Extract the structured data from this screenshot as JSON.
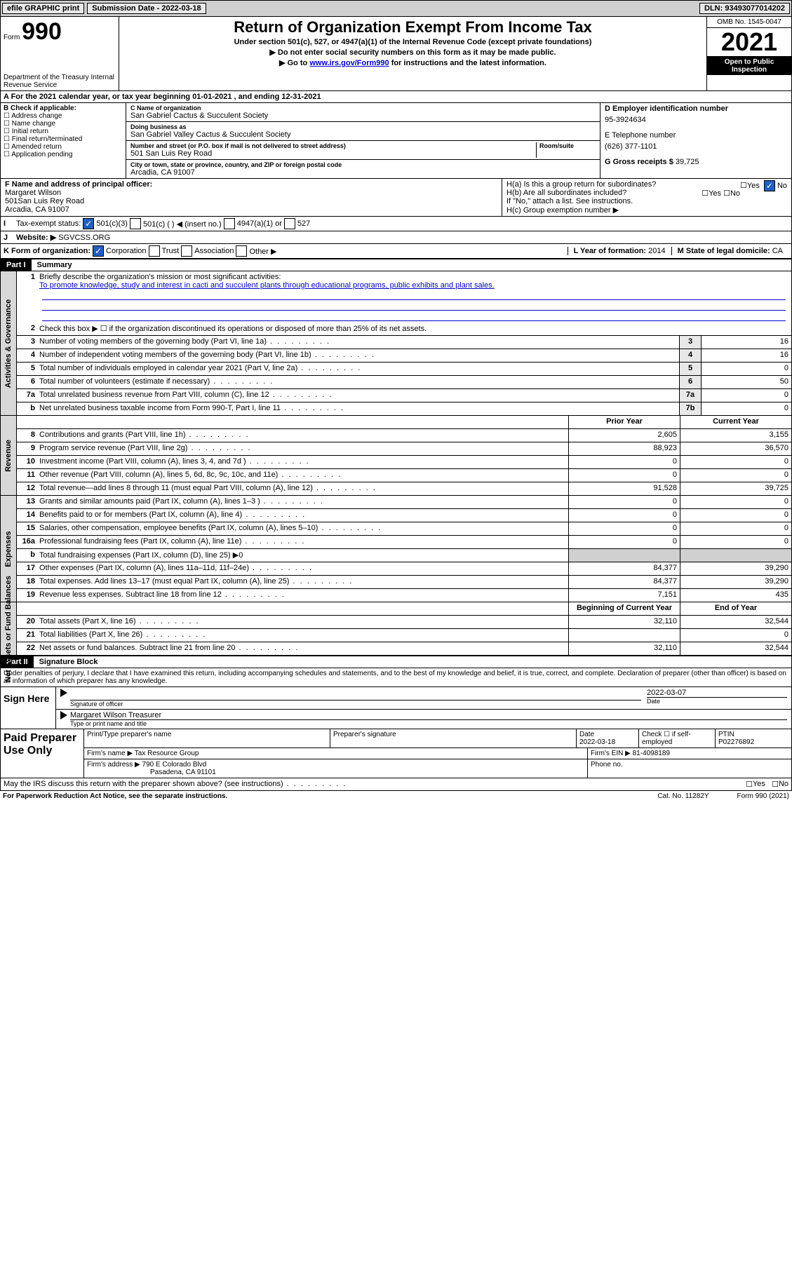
{
  "topbar": {
    "efile": "efile GRAPHIC print",
    "subdate_label": "Submission Date - ",
    "subdate": "2022-03-18",
    "dln_label": "DLN: ",
    "dln": "93493077014202"
  },
  "header": {
    "form_label": "Form",
    "form_num": "990",
    "dept": "Department of the Treasury\nInternal Revenue Service",
    "title": "Return of Organization Exempt From Income Tax",
    "sub1": "Under section 501(c), 527, or 4947(a)(1) of the Internal Revenue Code (except private foundations)",
    "sub2": "▶ Do not enter social security numbers on this form as it may be made public.",
    "sub3_pre": "▶ Go to ",
    "sub3_link": "www.irs.gov/Form990",
    "sub3_post": " for instructions and the latest information.",
    "omb": "OMB No. 1545-0047",
    "year": "2021",
    "open": "Open to Public Inspection"
  },
  "row_a": "A For the 2021 calendar year, or tax year beginning 01-01-2021   , and ending 12-31-2021",
  "b": {
    "label": "B Check if applicable:",
    "items": [
      "Address change",
      "Name change",
      "Initial return",
      "Final return/terminated",
      "Amended return",
      "Application pending"
    ]
  },
  "c": {
    "name_label": "C Name of organization",
    "name": "San Gabriel Cactus & Succulent Society",
    "dba_label": "Doing business as",
    "dba": "San Gabriel Valley Cactus & Succulent Society",
    "addr_label": "Number and street (or P.O. box if mail is not delivered to street address)",
    "room_label": "Room/suite",
    "addr": "501 San Luis Rey Road",
    "city_label": "City or town, state or province, country, and ZIP or foreign postal code",
    "city": "Arcadia, CA  91007"
  },
  "d": {
    "ein_label": "D Employer identification number",
    "ein": "95-3924634",
    "phone_label": "E Telephone number",
    "phone": "(626) 377-1101",
    "gross_label": "G Gross receipts $ ",
    "gross": "39,725"
  },
  "f": {
    "label": "F Name and address of principal officer:",
    "name": "Margaret Wilson",
    "addr1": "501San Luis Rey Road",
    "addr2": "Arcadia, CA  91007"
  },
  "h": {
    "ha": "H(a)  Is this a group return for subordinates?",
    "hb": "H(b)  Are all subordinates included?",
    "hb_note": "If \"No,\" attach a list. See instructions.",
    "hc": "H(c)  Group exemption number ▶",
    "yes": "Yes",
    "no": "No"
  },
  "i": {
    "label": "Tax-exempt status:",
    "opt1": "501(c)(3)",
    "opt2": "501(c) (  ) ◀ (insert no.)",
    "opt3": "4947(a)(1) or",
    "opt4": "527"
  },
  "j": {
    "label": "Website: ▶",
    "val": "SGVCSS.ORG"
  },
  "k": {
    "label": "K Form of organization:",
    "corp": "Corporation",
    "trust": "Trust",
    "assoc": "Association",
    "other": "Other ▶",
    "l_label": "L Year of formation: ",
    "l_val": "2014",
    "m_label": "M State of legal domicile: ",
    "m_val": "CA"
  },
  "part1": {
    "hdr": "Part I",
    "title": "Summary"
  },
  "mission": {
    "label": "Briefly describe the organization's mission or most significant activities:",
    "text": "To promote knowledge, study and interest in cacti and succulent plants through educational programs, public exhibits and plant sales."
  },
  "lines_gov": [
    {
      "n": "2",
      "t": "Check this box ▶ ☐  if the organization discontinued its operations or disposed of more than 25% of its net assets."
    },
    {
      "n": "3",
      "t": "Number of voting members of the governing body (Part VI, line 1a)",
      "box": "3",
      "v": "16"
    },
    {
      "n": "4",
      "t": "Number of independent voting members of the governing body (Part VI, line 1b)",
      "box": "4",
      "v": "16"
    },
    {
      "n": "5",
      "t": "Total number of individuals employed in calendar year 2021 (Part V, line 2a)",
      "box": "5",
      "v": "0"
    },
    {
      "n": "6",
      "t": "Total number of volunteers (estimate if necessary)",
      "box": "6",
      "v": "50"
    },
    {
      "n": "7a",
      "t": "Total unrelated business revenue from Part VIII, column (C), line 12",
      "box": "7a",
      "v": "0"
    },
    {
      "n": "b",
      "t": "Net unrelated business taxable income from Form 990-T, Part I, line 11",
      "box": "7b",
      "v": "0"
    }
  ],
  "rev_hdr": {
    "prior": "Prior Year",
    "curr": "Current Year"
  },
  "lines_rev": [
    {
      "n": "8",
      "t": "Contributions and grants (Part VIII, line 1h)",
      "p": "2,605",
      "c": "3,155"
    },
    {
      "n": "9",
      "t": "Program service revenue (Part VIII, line 2g)",
      "p": "88,923",
      "c": "36,570"
    },
    {
      "n": "10",
      "t": "Investment income (Part VIII, column (A), lines 3, 4, and 7d )",
      "p": "0",
      "c": "0"
    },
    {
      "n": "11",
      "t": "Other revenue (Part VIII, column (A), lines 5, 6d, 8c, 9c, 10c, and 11e)",
      "p": "0",
      "c": "0"
    },
    {
      "n": "12",
      "t": "Total revenue—add lines 8 through 11 (must equal Part VIII, column (A), line 12)",
      "p": "91,528",
      "c": "39,725"
    }
  ],
  "lines_exp": [
    {
      "n": "13",
      "t": "Grants and similar amounts paid (Part IX, column (A), lines 1–3 )",
      "p": "0",
      "c": "0"
    },
    {
      "n": "14",
      "t": "Benefits paid to or for members (Part IX, column (A), line 4)",
      "p": "0",
      "c": "0"
    },
    {
      "n": "15",
      "t": "Salaries, other compensation, employee benefits (Part IX, column (A), lines 5–10)",
      "p": "0",
      "c": "0"
    },
    {
      "n": "16a",
      "t": "Professional fundraising fees (Part IX, column (A), line 11e)",
      "p": "0",
      "c": "0"
    },
    {
      "n": "b",
      "t": "Total fundraising expenses (Part IX, column (D), line 25) ▶0",
      "gray": true
    },
    {
      "n": "17",
      "t": "Other expenses (Part IX, column (A), lines 11a–11d, 11f–24e)",
      "p": "84,377",
      "c": "39,290"
    },
    {
      "n": "18",
      "t": "Total expenses. Add lines 13–17 (must equal Part IX, column (A), line 25)",
      "p": "84,377",
      "c": "39,290"
    },
    {
      "n": "19",
      "t": "Revenue less expenses. Subtract line 18 from line 12",
      "p": "7,151",
      "c": "435"
    }
  ],
  "na_hdr": {
    "beg": "Beginning of Current Year",
    "end": "End of Year"
  },
  "lines_na": [
    {
      "n": "20",
      "t": "Total assets (Part X, line 16)",
      "p": "32,110",
      "c": "32,544"
    },
    {
      "n": "21",
      "t": "Total liabilities (Part X, line 26)",
      "p": "",
      "c": "0"
    },
    {
      "n": "22",
      "t": "Net assets or fund balances. Subtract line 21 from line 20",
      "p": "32,110",
      "c": "32,544"
    }
  ],
  "part2": {
    "hdr": "Part II",
    "title": "Signature Block"
  },
  "decl": "Under penalties of perjury, I declare that I have examined this return, including accompanying schedules and statements, and to the best of my knowledge and belief, it is true, correct, and complete. Declaration of preparer (other than officer) is based on all information of which preparer has any knowledge.",
  "sign": {
    "here": "Sign Here",
    "sig_label": "Signature of officer",
    "date_label": "Date",
    "date": "2022-03-07",
    "name": "Margaret Wilson Treasurer",
    "name_label": "Type or print name and title"
  },
  "paid": {
    "label": "Paid Preparer Use Only",
    "h1": "Print/Type preparer's name",
    "h2": "Preparer's signature",
    "h3": "Date",
    "h3v": "2022-03-18",
    "h4": "Check ☐ if self-employed",
    "h5": "PTIN",
    "h5v": "P02276892",
    "firm_label": "Firm's name    ▶",
    "firm": "Tax Resource Group",
    "ein_label": "Firm's EIN ▶",
    "ein": "81-4098189",
    "addr_label": "Firm's address ▶",
    "addr1": "790 E Colorado Blvd",
    "addr2": "Pasadena, CA  91101",
    "phone_label": "Phone no."
  },
  "may": "May the IRS discuss this return with the preparer shown above? (see instructions)",
  "footer": {
    "left": "For Paperwork Reduction Act Notice, see the separate instructions.",
    "mid": "Cat. No. 11282Y",
    "right": "Form 990 (2021)"
  },
  "vtabs": {
    "gov": "Activities & Governance",
    "rev": "Revenue",
    "exp": "Expenses",
    "na": "Net Assets or Fund Balances"
  }
}
